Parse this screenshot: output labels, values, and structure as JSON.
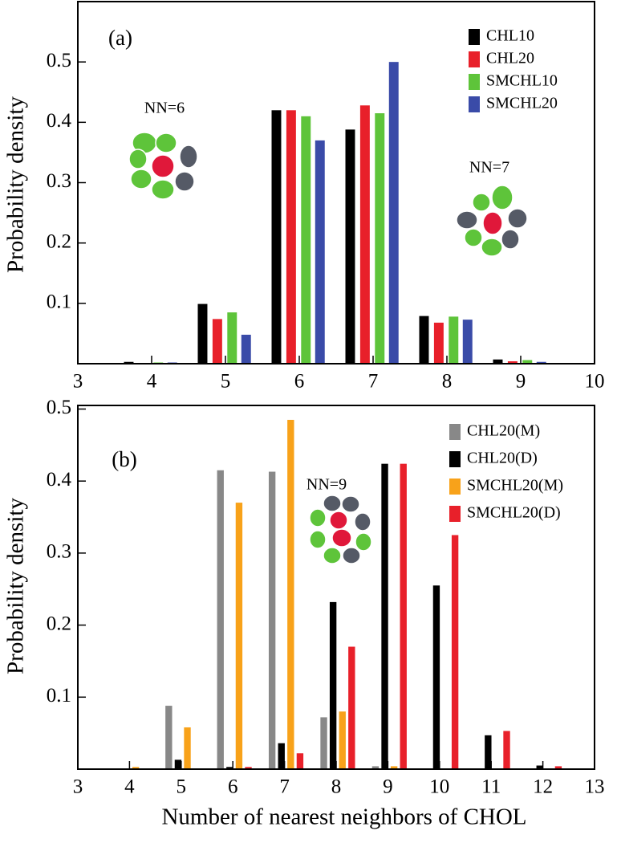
{
  "chart_data": [
    {
      "type": "bar",
      "ylabel": "Probability density",
      "x": [
        4,
        5,
        6,
        7,
        8,
        9
      ],
      "series": [
        {
          "name": "CHL10",
          "color": "#000000",
          "values": [
            0.003,
            0.099,
            0.42,
            0.388,
            0.079,
            0.007
          ]
        },
        {
          "name": "CHL20",
          "color": "#e8202a",
          "values": [
            0.001,
            0.074,
            0.42,
            0.428,
            0.068,
            0.004
          ]
        },
        {
          "name": "SMCHL10",
          "color": "#5ec43a",
          "values": [
            0.002,
            0.085,
            0.41,
            0.415,
            0.078,
            0.006
          ]
        },
        {
          "name": "SMCHL20",
          "color": "#3a4ba8",
          "values": [
            0.002,
            0.048,
            0.37,
            0.5,
            0.073,
            0.003
          ]
        }
      ],
      "xlim": [
        3,
        10
      ],
      "xticks": [
        3,
        4,
        5,
        6,
        7,
        8,
        9,
        10
      ],
      "ylim": [
        0,
        0.6
      ],
      "yticks": [
        0.1,
        0.2,
        0.3,
        0.4,
        0.5
      ],
      "annotations": [
        "(a)",
        "NN=6",
        "NN=7"
      ]
    },
    {
      "type": "bar",
      "xlabel": "Number of nearest neighbors of CHOL",
      "ylabel": "Probability density",
      "x": [
        4,
        5,
        6,
        7,
        8,
        9,
        10,
        11,
        12
      ],
      "series": [
        {
          "name": "CHL20(M)",
          "color": "#888888",
          "values": [
            0.001,
            0.088,
            0.415,
            0.413,
            0.072,
            0.004,
            0,
            0,
            0
          ]
        },
        {
          "name": "CHL20(D)",
          "color": "#000000",
          "values": [
            0,
            0.013,
            0.003,
            0.036,
            0.232,
            0.424,
            0.255,
            0.047,
            0.005
          ]
        },
        {
          "name": "SMCHL20(M)",
          "color": "#f8a21a",
          "values": [
            0.003,
            0.058,
            0.37,
            0.485,
            0.08,
            0.004,
            0,
            0,
            0
          ]
        },
        {
          "name": "SMCHL20(D)",
          "color": "#e8202a",
          "values": [
            0,
            0,
            0.003,
            0.022,
            0.17,
            0.424,
            0.325,
            0.053,
            0.004
          ]
        }
      ],
      "xlim": [
        3,
        13
      ],
      "xticks": [
        3,
        4,
        5,
        6,
        7,
        8,
        9,
        10,
        11,
        12,
        13
      ],
      "ylim": [
        0,
        0.505
      ],
      "yticks": [
        0.1,
        0.2,
        0.3,
        0.4,
        0.5
      ],
      "annotations": [
        "(b)",
        "NN=9"
      ]
    }
  ]
}
